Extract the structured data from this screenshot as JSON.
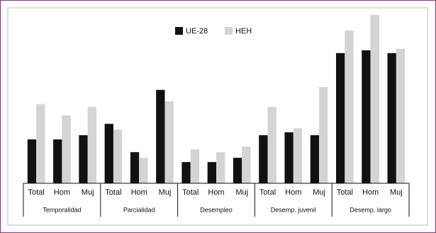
{
  "chart_data": {
    "type": "bar",
    "categories": [
      "Total",
      "Hom",
      "Muj",
      "Total",
      "Hom",
      "Muj",
      "Total",
      "Hom",
      "Muj",
      "Total",
      "Hom",
      "Muj",
      "Total",
      "Hom",
      "Muj"
    ],
    "groups": [
      "Temporalidad",
      "Parcialidad",
      "Desempleo",
      "Desemp. juvenil",
      "Desemp. largo"
    ],
    "series": [
      {
        "name": "UE-28",
        "color": "#111111",
        "values": [
          15.5,
          15.5,
          17,
          21,
          11,
          33,
          7.5,
          7.5,
          9,
          17,
          18,
          17,
          46,
          47,
          46
        ]
      },
      {
        "name": "HEH",
        "color": "#d4d4d4",
        "values": [
          28,
          24,
          27,
          19,
          9,
          29,
          12,
          11,
          13,
          27,
          19.5,
          34,
          54,
          59.5,
          47.5
        ]
      }
    ],
    "ylim": [
      0,
      60
    ]
  }
}
